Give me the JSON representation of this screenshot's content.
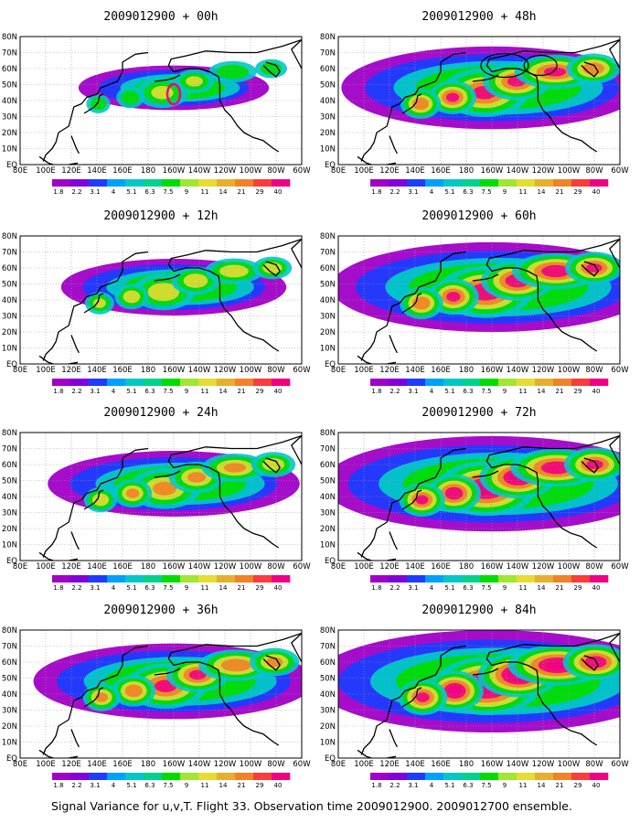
{
  "figure": {
    "caption": "Signal Variance for u,v,T. Flight 33. Observation time 2009012900. 2009012700 ensemble.",
    "lat_labels": [
      "EQ",
      "10N",
      "20N",
      "30N",
      "40N",
      "50N",
      "60N",
      "70N",
      "80N"
    ],
    "lon_labels": [
      "80E",
      "100E",
      "120E",
      "140E",
      "160E",
      "180",
      "160W",
      "140W",
      "120W",
      "100W",
      "80W",
      "60W"
    ],
    "colorbar": {
      "labels": [
        "1.8",
        "2.2",
        "3.1",
        "4",
        "5.1",
        "6.3",
        "7.5",
        "9",
        "11",
        "14",
        "21",
        "29",
        "40"
      ],
      "colors": [
        "#a000c8",
        "#8200dc",
        "#1e3cff",
        "#00a0ff",
        "#00c8c8",
        "#00d28c",
        "#00dc00",
        "#a0e632",
        "#e6dc32",
        "#e6af2d",
        "#f08228",
        "#fa3c3c",
        "#f00082"
      ]
    }
  },
  "panels": [
    {
      "title": "2009012900 + 00h",
      "intensity": 0.18,
      "marker": "ring"
    },
    {
      "title": "2009012900 + 12h",
      "intensity": 0.35
    },
    {
      "title": "2009012900 + 24h",
      "intensity": 0.48
    },
    {
      "title": "2009012900 + 36h",
      "intensity": 0.62
    },
    {
      "title": "2009012900 + 48h",
      "intensity": 0.72,
      "marker": "oval"
    },
    {
      "title": "2009012900 + 60h",
      "intensity": 0.82
    },
    {
      "title": "2009012900 + 72h",
      "intensity": 0.9
    },
    {
      "title": "2009012900 + 84h",
      "intensity": 1.0
    }
  ]
}
